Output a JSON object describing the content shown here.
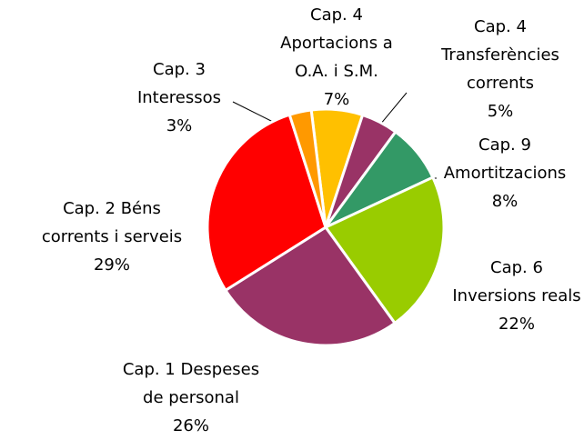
{
  "chart_data": {
    "type": "pie",
    "categories": [
      "Cap. 4\nAportacions a\nO.A. i S.M.",
      "Cap. 4\nTransferències\ncorrents",
      "Cap. 9\nAmortitzacions",
      "Cap. 6\nInversions reals",
      "Cap. 1 Despeses\nde personal",
      "Cap. 2 Béns\ncorrents i serveis",
      "Cap. 3\nInteressos"
    ],
    "values": [
      7,
      5,
      8,
      22,
      26,
      29,
      3
    ],
    "value_labels": [
      "7%",
      "5%",
      "8%",
      "22%",
      "26%",
      "29%",
      "3%"
    ],
    "colors": [
      "#ffc000",
      "#993366",
      "#339966",
      "#99cc00",
      "#993366",
      "#ff0000",
      "#ff9900"
    ]
  }
}
